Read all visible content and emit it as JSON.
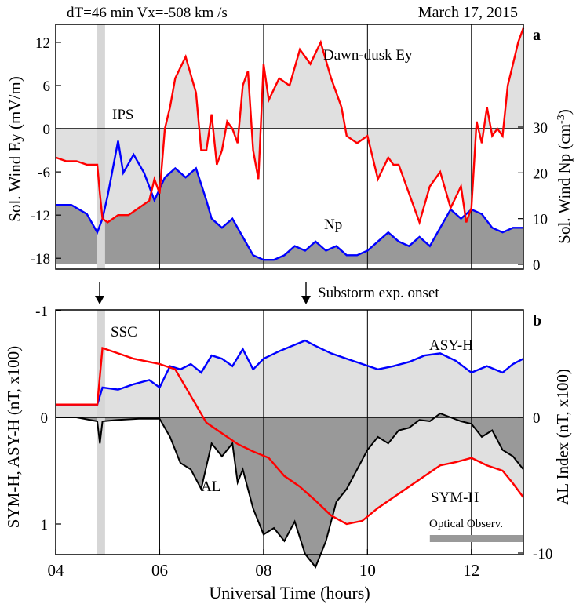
{
  "figure": {
    "header_left": "dT=46 min  Vx=-508 km /s",
    "header_right": "March 17, 2015",
    "x_axis_label": "Universal Time (hours)",
    "x_ticks": [
      "04",
      "06",
      "08",
      "10",
      "12"
    ],
    "event_arrows": {
      "ips_arrow_label": "",
      "substorm_label": "Substorm exp. onset"
    }
  },
  "chart_data": [
    {
      "type": "area",
      "panel_letter": "a",
      "x_range_ut_hours": [
        4.0,
        13.0
      ],
      "left_axis": {
        "label": "Sol. Wind Ey (mV/m)",
        "ticks": [
          -18,
          -12,
          -6,
          0,
          6,
          12
        ],
        "ylim": [
          -19.5,
          14.5
        ]
      },
      "right_axis": {
        "label": "Sol. Wind Np (cm-3)",
        "label_main": "Sol. Wind Np (cm",
        "label_exp": "-3",
        "label_close": ")",
        "ticks": [
          0,
          10,
          20,
          30
        ],
        "ylim": [
          0,
          30
        ]
      },
      "vertical_grid_hours": [
        6,
        8,
        10,
        12
      ],
      "shaded_band_ut": [
        4.8,
        4.95
      ],
      "annotations": [
        "IPS",
        "Dawn-dusk Ey",
        "Np"
      ],
      "series": [
        {
          "name": "Dawn-dusk Ey",
          "color": "#ff0000",
          "fill": "#e0e0e0",
          "axis": "left",
          "x": [
            4.0,
            4.2,
            4.4,
            4.6,
            4.8,
            4.85,
            4.9,
            5.0,
            5.2,
            5.4,
            5.6,
            5.8,
            5.9,
            6.0,
            6.1,
            6.2,
            6.3,
            6.5,
            6.7,
            6.8,
            6.9,
            7.0,
            7.1,
            7.2,
            7.3,
            7.4,
            7.5,
            7.6,
            7.7,
            7.8,
            7.9,
            8.0,
            8.1,
            8.3,
            8.5,
            8.7,
            8.9,
            9.1,
            9.3,
            9.5,
            9.6,
            9.8,
            10.0,
            10.2,
            10.4,
            10.5,
            10.6,
            10.8,
            11.0,
            11.2,
            11.4,
            11.6,
            11.8,
            11.9,
            12.0,
            12.1,
            12.2,
            12.3,
            12.4,
            12.5,
            12.6,
            12.7,
            12.8,
            12.9,
            13.0
          ],
          "y": [
            -4,
            -4.5,
            -4.5,
            -5,
            -5,
            -9,
            -12.5,
            -13,
            -12,
            -12,
            -11,
            -10,
            -7,
            -9,
            0,
            3,
            7,
            10,
            5,
            -3,
            -3,
            2,
            -5,
            -3,
            1,
            0,
            -2,
            6,
            8,
            -3,
            -7,
            9,
            4,
            7,
            6,
            11,
            9,
            12,
            7,
            3,
            -1,
            -2,
            -1,
            -7,
            -4,
            -5,
            -5,
            -9,
            -13,
            -8,
            -6,
            -11,
            -8,
            -13,
            -11,
            1,
            -2,
            3,
            -1,
            0,
            -1,
            6,
            9,
            12,
            14
          ]
        },
        {
          "name": "Np",
          "color": "#0000ff",
          "fill": "#999999",
          "axis": "right",
          "x": [
            4.0,
            4.3,
            4.6,
            4.8,
            4.9,
            5.0,
            5.2,
            5.3,
            5.5,
            5.7,
            5.9,
            6.1,
            6.3,
            6.5,
            6.7,
            6.9,
            7.0,
            7.2,
            7.4,
            7.6,
            7.8,
            8.0,
            8.2,
            8.4,
            8.6,
            8.8,
            9.0,
            9.2,
            9.4,
            9.6,
            9.8,
            10.0,
            10.2,
            10.4,
            10.6,
            10.8,
            11.0,
            11.2,
            11.4,
            11.6,
            11.8,
            12.0,
            12.2,
            12.4,
            12.6,
            12.8,
            13.0
          ],
          "y": [
            13,
            13,
            11,
            7,
            10,
            15,
            27,
            20,
            24,
            20,
            14,
            19,
            21,
            19,
            21,
            14,
            10,
            8,
            10,
            6,
            2,
            1,
            1,
            2,
            4,
            3,
            5,
            3,
            4,
            2,
            2,
            3,
            5,
            7,
            5,
            4,
            6,
            4,
            8,
            12,
            10,
            12,
            11,
            8,
            7,
            8,
            8
          ]
        }
      ]
    },
    {
      "type": "area",
      "panel_letter": "b",
      "x_range_ut_hours": [
        4.0,
        13.0
      ],
      "left_axis": {
        "label": "SYM-H, ASY-H (nT,  x100)",
        "ticks": [
          "-1",
          "0",
          "1"
        ],
        "ylim": [
          -1.2,
          1.0
        ]
      },
      "right_axis": {
        "label": "AL Index (nT,  x100)",
        "ticks": [
          "-10",
          "0"
        ],
        "ylim": [
          -12,
          0
        ]
      },
      "vertical_grid_hours": [
        6,
        8,
        10,
        12
      ],
      "shaded_band_ut": [
        4.8,
        4.95
      ],
      "annotations": [
        "SSC",
        "ASY-H",
        "AL",
        "SYM-H",
        "Optical Observ."
      ],
      "optical_observation_ut": [
        11.2,
        13.0
      ],
      "series": [
        {
          "name": "ASY-H",
          "color": "#0000ff",
          "fill": "#e0e0e0",
          "axis": "left",
          "x": [
            4.0,
            4.4,
            4.8,
            4.9,
            5.2,
            5.5,
            5.8,
            6.0,
            6.2,
            6.4,
            6.6,
            6.8,
            7.0,
            7.2,
            7.4,
            7.6,
            7.8,
            8.0,
            8.3,
            8.6,
            8.8,
            9.0,
            9.3,
            9.6,
            9.9,
            10.2,
            10.5,
            10.8,
            11.1,
            11.4,
            11.7,
            12.0,
            12.3,
            12.6,
            12.8,
            13.0
          ],
          "y": [
            0.12,
            0.12,
            0.12,
            0.28,
            0.26,
            0.31,
            0.35,
            0.28,
            0.48,
            0.45,
            0.5,
            0.42,
            0.58,
            0.55,
            0.48,
            0.64,
            0.45,
            0.55,
            0.62,
            0.68,
            0.72,
            0.67,
            0.6,
            0.55,
            0.5,
            0.45,
            0.48,
            0.52,
            0.58,
            0.6,
            0.53,
            0.42,
            0.48,
            0.42,
            0.5,
            0.55
          ]
        },
        {
          "name": "SYM-H",
          "color": "#ff0000",
          "axis": "left",
          "x": [
            4.0,
            4.4,
            4.8,
            4.9,
            5.2,
            5.5,
            5.8,
            6.0,
            6.3,
            6.6,
            6.9,
            7.2,
            7.5,
            7.8,
            8.1,
            8.4,
            8.7,
            9.0,
            9.3,
            9.6,
            9.9,
            10.2,
            10.5,
            10.8,
            11.1,
            11.4,
            11.7,
            12.0,
            12.3,
            12.6,
            12.8,
            13.0
          ],
          "y": [
            0.12,
            0.12,
            0.12,
            0.65,
            0.6,
            0.55,
            0.52,
            0.5,
            0.45,
            0.2,
            -0.05,
            -0.15,
            -0.25,
            -0.32,
            -0.38,
            -0.55,
            -0.65,
            -0.78,
            -0.92,
            -1.0,
            -0.97,
            -0.85,
            -0.75,
            -0.65,
            -0.55,
            -0.45,
            -0.42,
            -0.38,
            -0.45,
            -0.5,
            -0.62,
            -0.75
          ]
        },
        {
          "name": "AL",
          "color": "#000000",
          "fill": "#999999",
          "axis": "right",
          "x": [
            4.0,
            4.4,
            4.8,
            4.85,
            4.9,
            5.2,
            5.6,
            6.0,
            6.2,
            6.4,
            6.6,
            6.8,
            7.0,
            7.2,
            7.4,
            7.5,
            7.6,
            7.8,
            8.0,
            8.2,
            8.4,
            8.6,
            8.8,
            9.0,
            9.2,
            9.4,
            9.6,
            9.8,
            10.0,
            10.2,
            10.4,
            10.6,
            10.8,
            11.0,
            11.2,
            11.4,
            11.6,
            11.8,
            12.0,
            12.2,
            12.4,
            12.6,
            12.8,
            13.0
          ],
          "y": [
            0,
            0,
            -0.3,
            -2.0,
            -0.3,
            -0.2,
            -0.1,
            -0.1,
            -1.5,
            -3.5,
            -4.0,
            -5.5,
            -2.0,
            -3.0,
            -2.0,
            -5.0,
            -4.0,
            -7.0,
            -9.0,
            -8.5,
            -9.5,
            -8.0,
            -10.5,
            -11.5,
            -9.5,
            -6.5,
            -5.5,
            -4.0,
            -2.5,
            -1.5,
            -2.0,
            -1.0,
            -0.8,
            -0.2,
            -0.3,
            0.3,
            0.0,
            -0.3,
            -0.5,
            -1.5,
            -1.0,
            -2.5,
            -3.0,
            -4.0
          ]
        }
      ]
    }
  ]
}
